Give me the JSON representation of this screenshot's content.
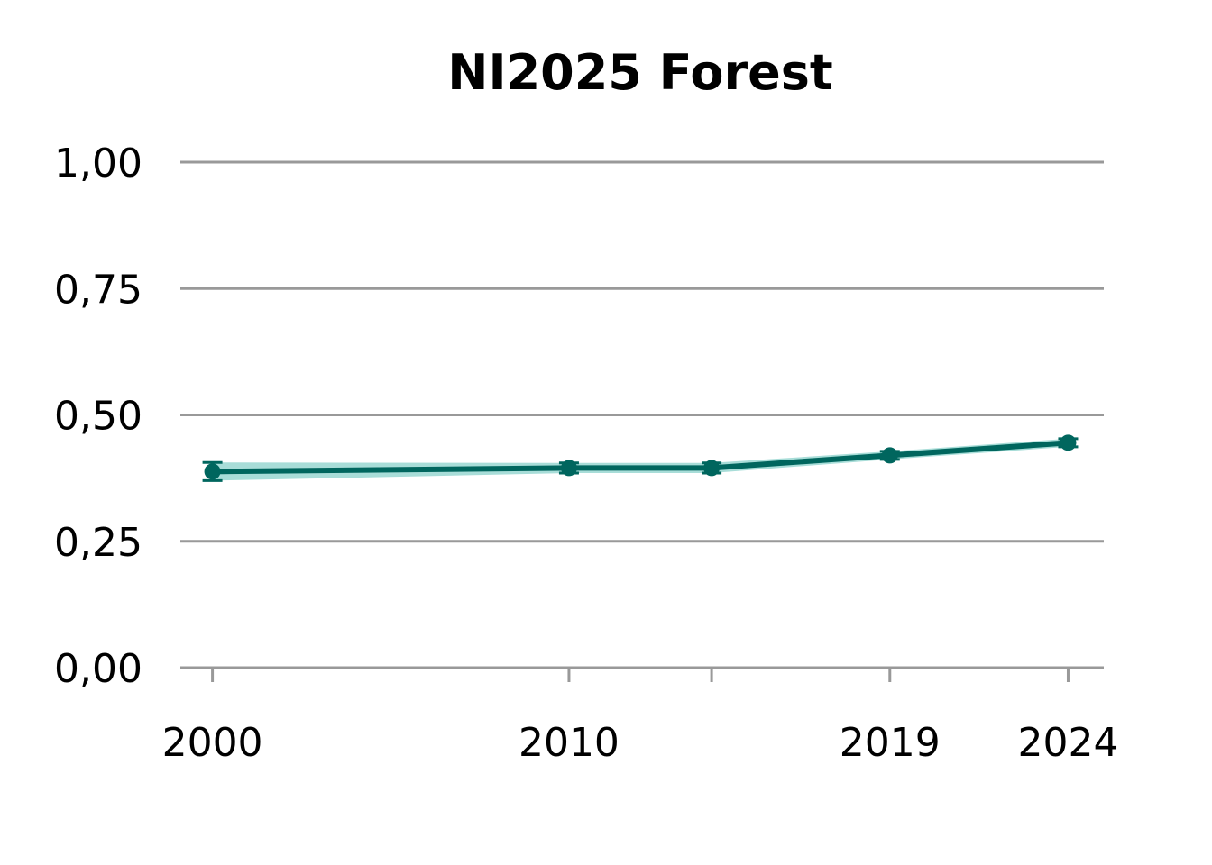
{
  "chart_data": {
    "type": "line",
    "title": "NI2025 Forest",
    "xlabel": "",
    "ylabel": "",
    "xlim": [
      1999.1,
      2025.0
    ],
    "ylim": [
      0,
      1
    ],
    "x_ticks": [
      2000,
      2010,
      2014,
      2019,
      2024
    ],
    "x_tick_labels": [
      "2000",
      "2010",
      "",
      "2019",
      "2024"
    ],
    "y_ticks": [
      0,
      0.25,
      0.5,
      0.75,
      1.0
    ],
    "y_tick_labels": [
      "0,00",
      "0,25",
      "0,50",
      "0,75",
      "1,00"
    ],
    "grid": "horizontal",
    "series": [
      {
        "x": [
          2000,
          2010,
          2014,
          2019,
          2024
        ],
        "values": [
          0.388,
          0.395,
          0.395,
          0.42,
          0.445
        ],
        "lower": [
          0.37,
          0.385,
          0.385,
          0.412,
          0.437
        ],
        "upper": [
          0.406,
          0.405,
          0.405,
          0.428,
          0.453
        ],
        "color": "#00665e",
        "band_color": "#a8ddd8"
      }
    ]
  }
}
